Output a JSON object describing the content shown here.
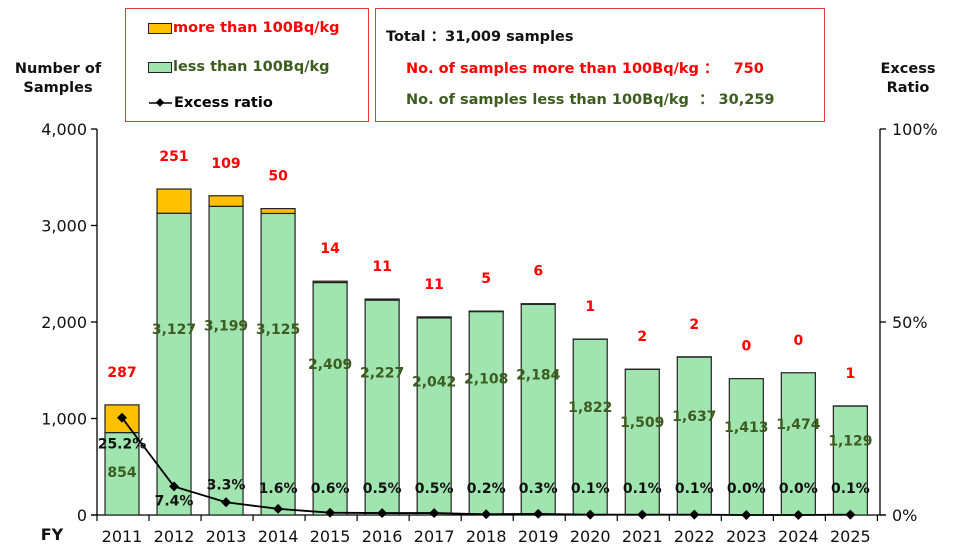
{
  "legend": {
    "items": [
      {
        "label": "more than 100Bq/kg",
        "color": "#ffc000",
        "text_color": "#ff0000"
      },
      {
        "label": "less than 100Bq/kg",
        "color": "#a0e5b0",
        "text_color": "#3d5c1f"
      },
      {
        "label": "Excess ratio",
        "color": "#000000",
        "text_color": "#000000"
      }
    ]
  },
  "summary": {
    "total": "Total ：31,009 samples",
    "more_than": "No. of samples more than 100Bq/kg ：   750",
    "less_than": "No. of samples less than 100Bq/kg  ： 30,259"
  },
  "colors": {
    "above": "#ffc000",
    "below": "#a0e5b0",
    "above_label": "#ff0000",
    "below_label": "#3d5c1f",
    "line": "#000000"
  },
  "chart_data": {
    "type": "bar",
    "stacked": true,
    "title": "",
    "xlabel": "FY",
    "ylabel": "Number of Samples",
    "y2label": "Excess Ratio",
    "ylim": [
      0,
      4000
    ],
    "y2lim": [
      0,
      100
    ],
    "yticks": [
      "0",
      "1,000",
      "2,000",
      "3,000",
      "4,000"
    ],
    "ytick_values": [
      0,
      1000,
      2000,
      3000,
      4000
    ],
    "y2ticks": [
      "0%",
      "50%",
      "100%"
    ],
    "y2tick_values": [
      0,
      50,
      100
    ],
    "categories": [
      "2011",
      "2012",
      "2013",
      "2014",
      "2015",
      "2016",
      "2017",
      "2018",
      "2019",
      "2020",
      "2021",
      "2022",
      "2023",
      "2024",
      "2025"
    ],
    "series": [
      {
        "name": "less than 100Bq/kg",
        "kind": "bar",
        "values": [
          854,
          3127,
          3199,
          3125,
          2409,
          2227,
          2042,
          2108,
          2184,
          1822,
          1509,
          1637,
          1413,
          1474,
          1129
        ],
        "labels": [
          "854",
          "3,127",
          "3,199",
          "3,125",
          "2,409",
          "2,227",
          "2,042",
          "2,108",
          "2,184",
          "1,822",
          "1,509",
          "1,637",
          "1,413",
          "1,474",
          "1,129"
        ]
      },
      {
        "name": "more than 100Bq/kg",
        "kind": "bar",
        "values": [
          287,
          251,
          109,
          50,
          14,
          11,
          11,
          5,
          6,
          1,
          2,
          2,
          0,
          0,
          1
        ],
        "labels": [
          "287",
          "251",
          "109",
          "50",
          "14",
          "11",
          "11",
          "5",
          "6",
          "1",
          "2",
          "2",
          "0",
          "0",
          "1"
        ]
      },
      {
        "name": "Excess ratio",
        "kind": "line",
        "axis": "right",
        "values": [
          25.2,
          7.4,
          3.3,
          1.6,
          0.6,
          0.5,
          0.5,
          0.2,
          0.3,
          0.1,
          0.1,
          0.1,
          0.0,
          0.0,
          0.1
        ],
        "labels": [
          "25.2%",
          "7.4%",
          "3.3%",
          "1.6%",
          "0.6%",
          "0.5%",
          "0.5%",
          "0.2%",
          "0.3%",
          "0.1%",
          "0.1%",
          "0.1%",
          "0.0%",
          "0.0%",
          "0.1%"
        ]
      }
    ],
    "grid": false,
    "legend_position": "top-left"
  }
}
